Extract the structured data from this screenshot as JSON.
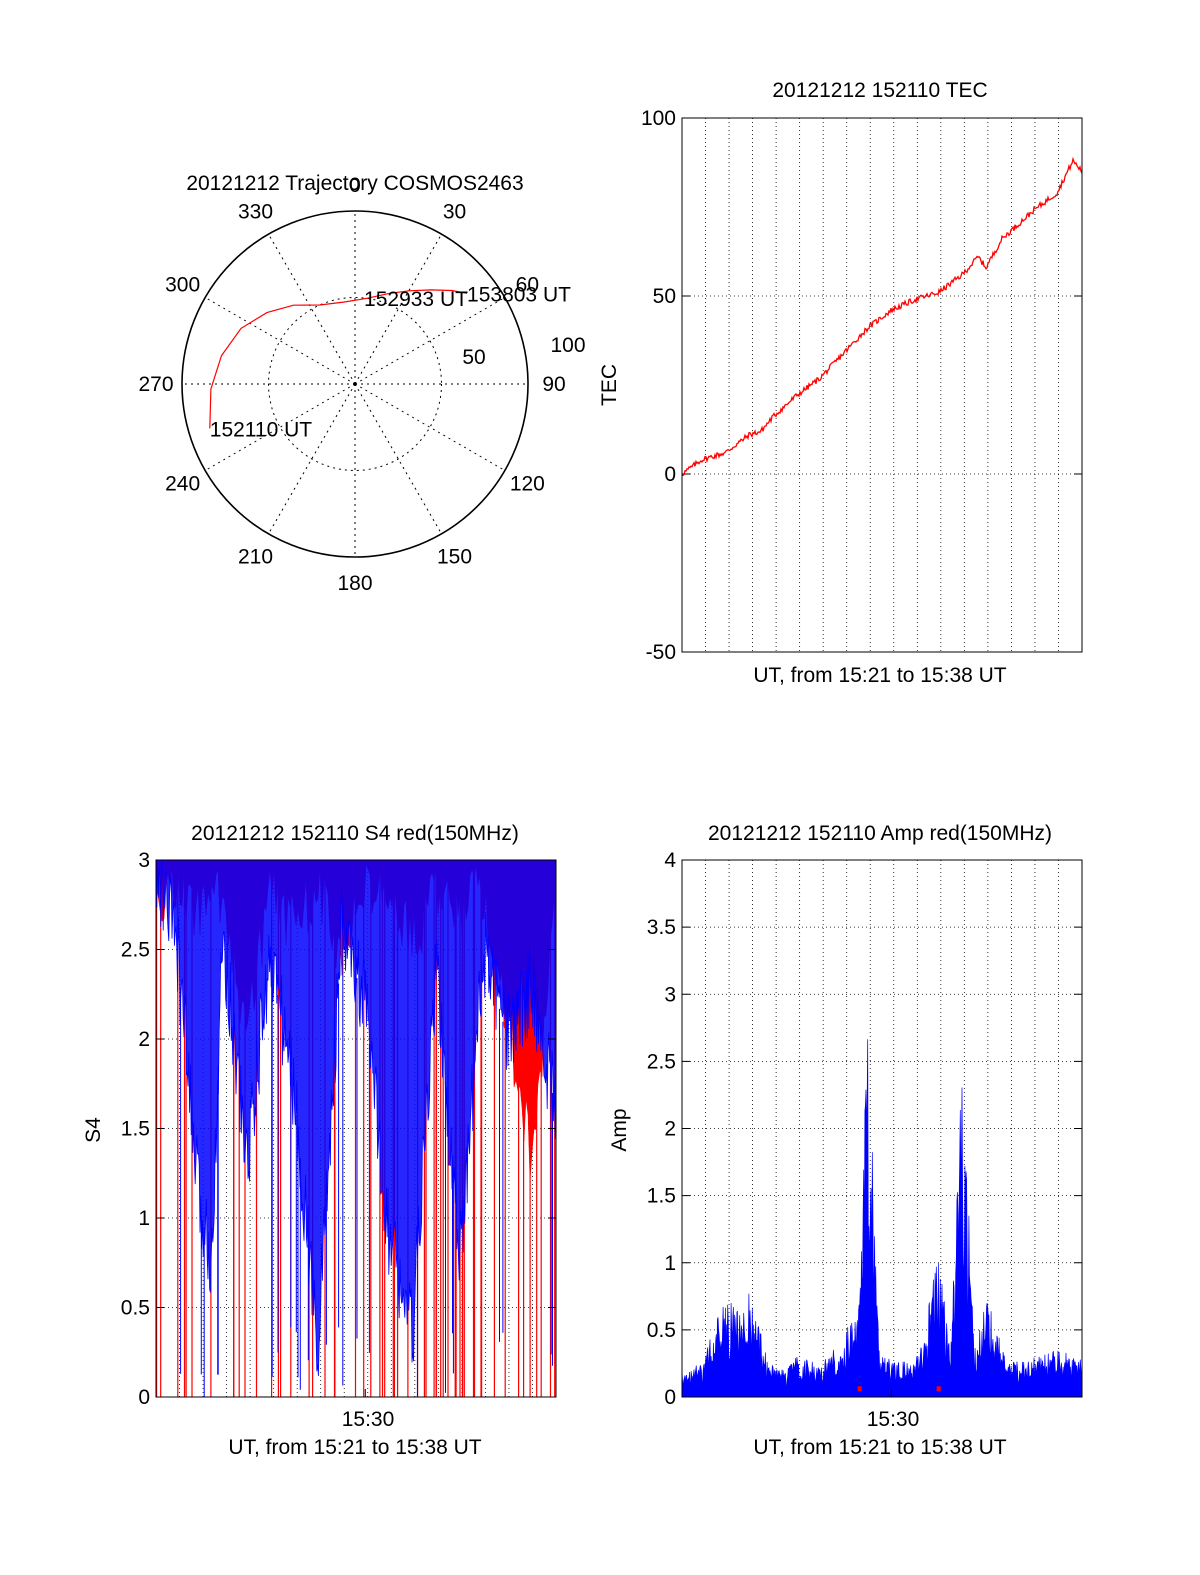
{
  "colors": {
    "red": "#ff0000",
    "blue": "#0000ff",
    "axis": "#000000"
  },
  "chart_data": [
    {
      "type": "polar",
      "title": "20121212 Trajectory COSMOS2463",
      "angle_labels": [
        "0",
        "30",
        "60",
        "90",
        "120",
        "150",
        "180",
        "210",
        "240",
        "270",
        "300",
        "330"
      ],
      "radius_labels": [
        "50",
        "100"
      ],
      "max_zenith": 90,
      "trajectory": [
        {
          "az": 253,
          "zen": 79
        },
        {
          "az": 268,
          "zen": 75
        },
        {
          "az": 282,
          "zen": 71
        },
        {
          "az": 296,
          "zen": 66
        },
        {
          "az": 309,
          "zen": 59
        },
        {
          "az": 322,
          "zen": 52
        },
        {
          "az": 336,
          "zen": 45
        },
        {
          "az": 352,
          "zen": 43
        },
        {
          "az": 8,
          "zen": 45
        },
        {
          "az": 20,
          "zen": 50
        },
        {
          "az": 30,
          "zen": 56
        },
        {
          "az": 39,
          "zen": 63
        },
        {
          "az": 46,
          "zen": 70
        },
        {
          "az": 51,
          "zen": 75
        }
      ],
      "annotations": [
        {
          "text": "152110 UT",
          "az": 253,
          "zen": 79
        },
        {
          "text": "152933 UT",
          "az": 6,
          "zen": 45
        },
        {
          "text": "153803 UT",
          "az": 51,
          "zen": 75
        }
      ]
    },
    {
      "type": "line",
      "title": "20121212 152110 TEC",
      "xlabel": "UT, from 15:21 to 15:38 UT",
      "ylabel": "TEC",
      "xlim": [
        "15:21:10",
        "15:38:03"
      ],
      "ylim": [
        -50,
        100
      ],
      "yticks": [
        "-50",
        "0",
        "50",
        "100"
      ],
      "grid": true,
      "series": [
        {
          "color": "red",
          "x": [
            "15:21:10",
            "15:22:00",
            "15:23:00",
            "15:24:00",
            "15:24:30",
            "15:25:00",
            "15:26:00",
            "15:27:00",
            "15:28:00",
            "15:29:00",
            "15:30:00",
            "15:31:00",
            "15:32:00",
            "15:33:00",
            "15:33:40",
            "15:34:00",
            "15:34:40",
            "15:35:00",
            "15:36:00",
            "15:37:00",
            "15:37:40",
            "15:38:03"
          ],
          "y": [
            0,
            4,
            6,
            11,
            12,
            16,
            22,
            27,
            34,
            41,
            46,
            49,
            51,
            56,
            61,
            58,
            66,
            68,
            74,
            79,
            88,
            85
          ]
        }
      ]
    },
    {
      "type": "area",
      "title": "20121212 152110 S4 red(150MHz)",
      "xlabel": "UT, from 15:21 to 15:38 UT",
      "ylabel": "S4",
      "xlim": [
        "15:21:10",
        "15:38:03"
      ],
      "ylim": [
        0,
        3
      ],
      "yticks": [
        "0",
        "0.5",
        "1",
        "1.5",
        "2",
        "2.5",
        "3"
      ],
      "xticks": [
        "15:30"
      ],
      "grid": true,
      "series": [
        {
          "color": "blue",
          "x": [
            "15:21:10",
            "15:22:00",
            "15:23:00",
            "15:23:30",
            "15:24:00",
            "15:25:00",
            "15:26:00",
            "15:27:00",
            "15:28:00",
            "15:29:00",
            "15:30:00",
            "15:31:00",
            "15:32:00",
            "15:33:00",
            "15:34:00",
            "15:35:00",
            "15:36:00",
            "15:37:00",
            "15:38:03"
          ],
          "y": [
            2.9,
            2.6,
            1.05,
            0.8,
            2.6,
            1.3,
            2.5,
            1.7,
            0.28,
            2.6,
            2.2,
            0.9,
            0.35,
            2.4,
            0.75,
            2.5,
            2.0,
            2.3,
            1.6
          ]
        },
        {
          "color": "red",
          "x": [
            "15:21:10",
            "15:22:00",
            "15:23:00",
            "15:24:00",
            "15:25:00",
            "15:26:00",
            "15:27:00",
            "15:28:00",
            "15:29:00",
            "15:30:00",
            "15:31:00",
            "15:32:00",
            "15:33:00",
            "15:34:00",
            "15:35:00",
            "15:36:00",
            "15:37:00",
            "15:38:03"
          ],
          "y": [
            3,
            3,
            2.9,
            3,
            2.2,
            3,
            2.8,
            3,
            2.6,
            3,
            3,
            2.7,
            3,
            2.9,
            3,
            2.3,
            1.5,
            2.9
          ]
        }
      ]
    },
    {
      "type": "area",
      "title": "20121212 152110 Amp red(150MHz)",
      "xlabel": "UT, from 15:21 to 15:38 UT",
      "ylabel": "Amp",
      "xlim": [
        "15:21:10",
        "15:38:03"
      ],
      "ylim": [
        0,
        4
      ],
      "yticks": [
        "0",
        "0.5",
        "1",
        "1.5",
        "2",
        "2.5",
        "3",
        "3.5",
        "4"
      ],
      "xticks": [
        "15:30"
      ],
      "grid": true,
      "series": [
        {
          "color": "blue",
          "x": [
            "15:21:10",
            "15:22:00",
            "15:22:50",
            "15:23:00",
            "15:24:00",
            "15:24:50",
            "15:25:30",
            "15:26:00",
            "15:27:00",
            "15:27:30",
            "15:28:00",
            "15:28:40",
            "15:29:00",
            "15:29:30",
            "15:30:00",
            "15:31:00",
            "15:31:30",
            "15:32:00",
            "15:32:30",
            "15:33:00",
            "15:33:30",
            "15:34:00",
            "15:35:00",
            "15:36:00",
            "15:37:00",
            "15:38:03"
          ],
          "y": [
            0.2,
            0.25,
            0.75,
            0.7,
            0.8,
            0.25,
            0.2,
            0.3,
            0.25,
            0.35,
            0.45,
            0.75,
            2.9,
            0.3,
            0.3,
            0.25,
            0.6,
            1.1,
            0.3,
            2.7,
            0.35,
            0.8,
            0.25,
            0.3,
            0.35,
            0.3
          ]
        },
        {
          "color": "red",
          "x": [
            "15:28:40",
            "15:32:00"
          ],
          "y": [
            0.05,
            0.05
          ]
        }
      ]
    }
  ]
}
